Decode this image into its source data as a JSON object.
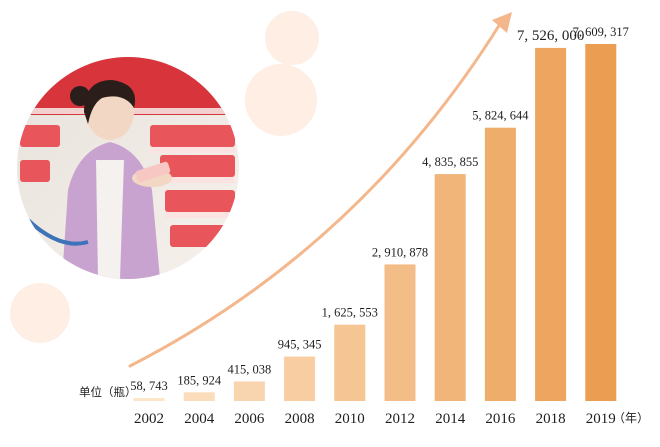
{
  "chart_data": {
    "type": "bar",
    "categories": [
      "2002",
      "2004",
      "2006",
      "2008",
      "2010",
      "2012",
      "2014",
      "2016",
      "2018",
      "2019"
    ],
    "values": [
      58743,
      185924,
      415038,
      945345,
      1625553,
      2910878,
      4835855,
      5824644,
      7526000,
      7609317
    ],
    "value_labels": [
      "58, 743",
      "185, 924",
      "415, 038",
      "945, 345",
      "1, 625, 553",
      "2, 910, 878",
      "4, 835, 855",
      "5, 824, 644",
      "7, 526, 000",
      "7, 609, 317"
    ],
    "unit_label": "单位（瓶）",
    "x_axis_suffix": "（年）",
    "title": "",
    "xlabel": "",
    "ylabel": "",
    "ylim": [
      0,
      7609317
    ],
    "grid": false,
    "legend": "none",
    "colors": {
      "bar_light": "#fde5c9",
      "bar_dark": "#eb9d52",
      "arrow": "#f4b78c",
      "decor_circle": "#fde8d9"
    }
  },
  "illustration": {
    "subject": "woman reading a product bottle in a supermarket aisle",
    "shape": "circle"
  }
}
